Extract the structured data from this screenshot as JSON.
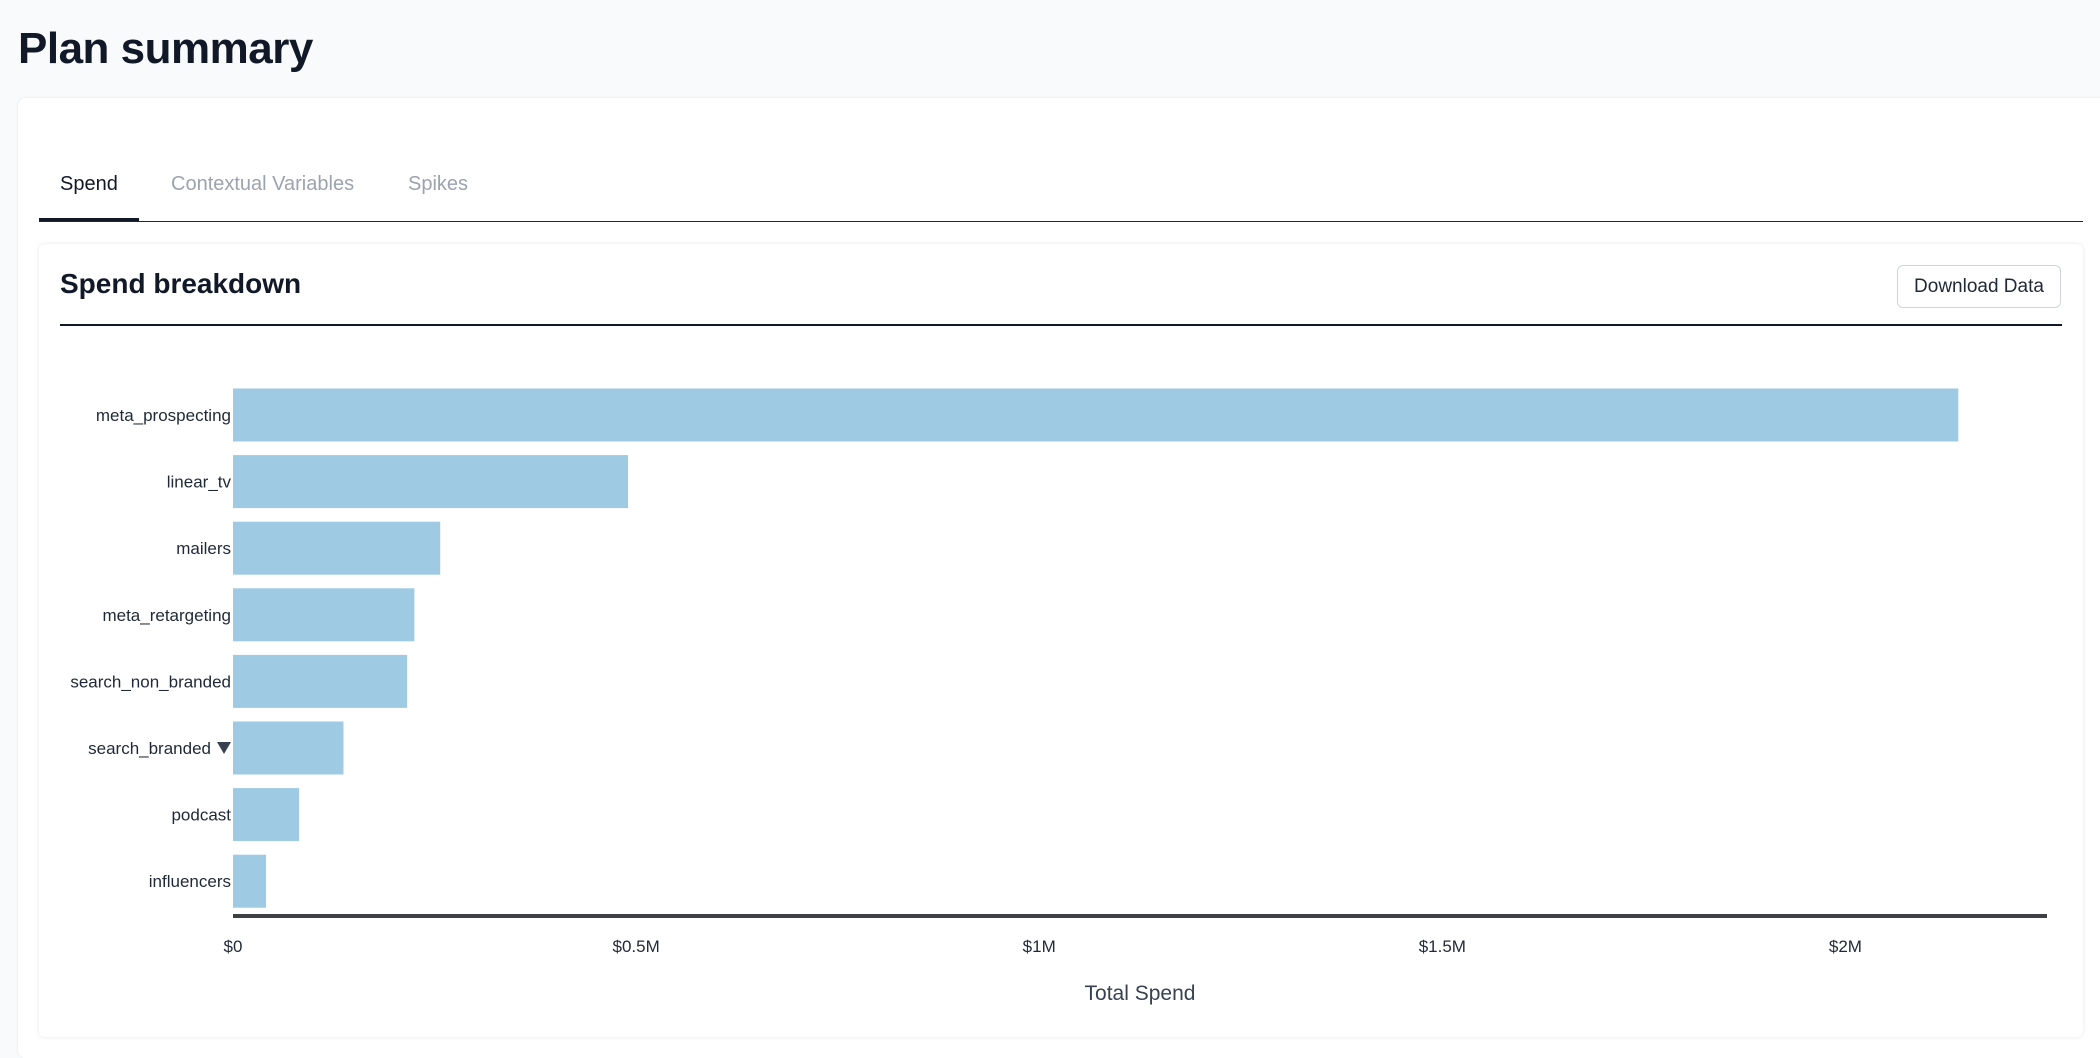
{
  "page": {
    "title": "Plan summary"
  },
  "tabs": [
    {
      "label": "Spend",
      "active": true
    },
    {
      "label": "Contextual Variables",
      "active": false
    },
    {
      "label": "Spikes",
      "active": false
    }
  ],
  "section": {
    "title": "Spend breakdown",
    "download_label": "Download Data"
  },
  "chart_data": {
    "type": "bar",
    "orientation": "horizontal",
    "categories": [
      "meta_prospecting",
      "linear_tv",
      "mailers",
      "meta_retargeting",
      "search_non_branded",
      "search_branded",
      "podcast",
      "influencers"
    ],
    "values": [
      2140000,
      490000,
      257000,
      225000,
      216000,
      137000,
      82000,
      41000
    ],
    "flagged_category": "search_branded",
    "flag_icon": "triangle-down-icon",
    "xlabel": "Total Spend",
    "ylabel": "",
    "xlim": [
      0,
      2250000
    ],
    "ticks": [
      {
        "value": 0,
        "label": "$0"
      },
      {
        "value": 500000,
        "label": "$0.5M"
      },
      {
        "value": 1000000,
        "label": "$1M"
      },
      {
        "value": 1500000,
        "label": "$1.5M"
      },
      {
        "value": 2000000,
        "label": "$2M"
      }
    ],
    "bar_color": "#9ecae4",
    "axis_color": "#3f3f46",
    "grid": false,
    "legend": "none"
  }
}
